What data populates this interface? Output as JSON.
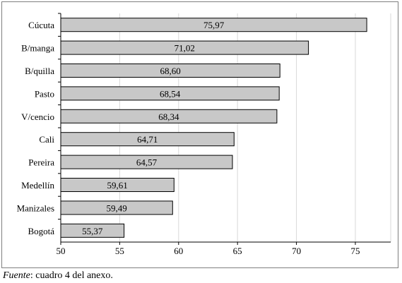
{
  "chart_data": {
    "type": "bar",
    "orientation": "horizontal",
    "categories": [
      "Cúcuta",
      "B/manga",
      "B/quilla",
      "Pasto",
      "V/cencio",
      "Cali",
      "Pereira",
      "Medellín",
      "Manizales",
      "Bogotá"
    ],
    "values": [
      75.97,
      71.02,
      68.6,
      68.54,
      68.34,
      64.71,
      64.57,
      59.61,
      59.49,
      55.37
    ],
    "value_labels": [
      "75,97",
      "71,02",
      "68,60",
      "68,54",
      "68,34",
      "64,71",
      "64,57",
      "59,61",
      "59,49",
      "55,37"
    ],
    "xlim": [
      50,
      78
    ],
    "x_ticks": [
      50,
      55,
      60,
      65,
      70,
      75
    ],
    "x_tick_labels": [
      "50",
      "55",
      "60",
      "65",
      "70",
      "75"
    ],
    "grid": "vertical",
    "title": "",
    "xlabel": "",
    "ylabel": "",
    "colors": {
      "bar_fill": "#c8c8c8",
      "bar_stroke": "#000000",
      "grid": "#d9d9d9",
      "axis": "#000000"
    }
  },
  "source": {
    "label": "Fuente",
    "text": ": cuadro 4 del anexo."
  }
}
